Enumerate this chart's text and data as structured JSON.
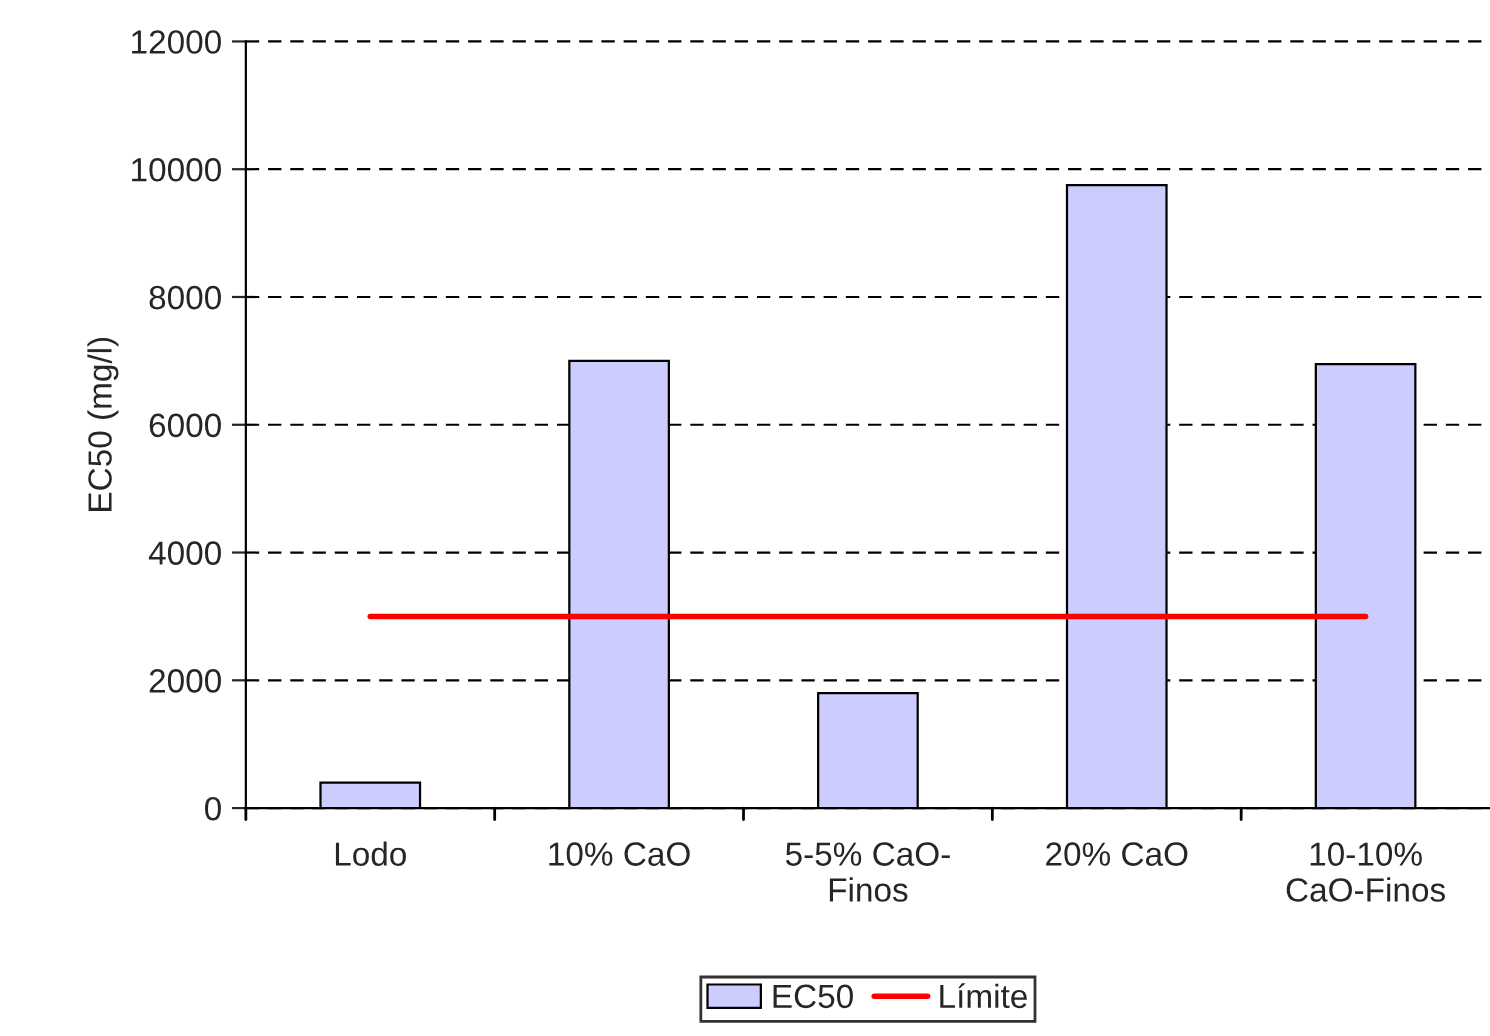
{
  "chart_data": {
    "type": "bar",
    "ylabel": "EC50 (mg/l)",
    "categories": [
      "Lodo",
      "10% CaO",
      "5-5% CaO-\nFinos",
      "20% CaO",
      "10-10%\nCaO-Finos"
    ],
    "series": [
      {
        "name": "EC50",
        "color": "#ccccff",
        "values": [
          400,
          7000,
          1800,
          9750,
          6950
        ]
      },
      {
        "name": "Límite",
        "type": "line",
        "color": "#ff0000",
        "values": [
          3000,
          3000,
          3000,
          3000,
          3000
        ]
      }
    ],
    "ylim": [
      0,
      12000
    ],
    "yticks": [
      0,
      2000,
      4000,
      6000,
      8000,
      10000,
      12000
    ],
    "grid": "y",
    "legend": "bottom",
    "marker": "none",
    "line_style": "solid"
  }
}
